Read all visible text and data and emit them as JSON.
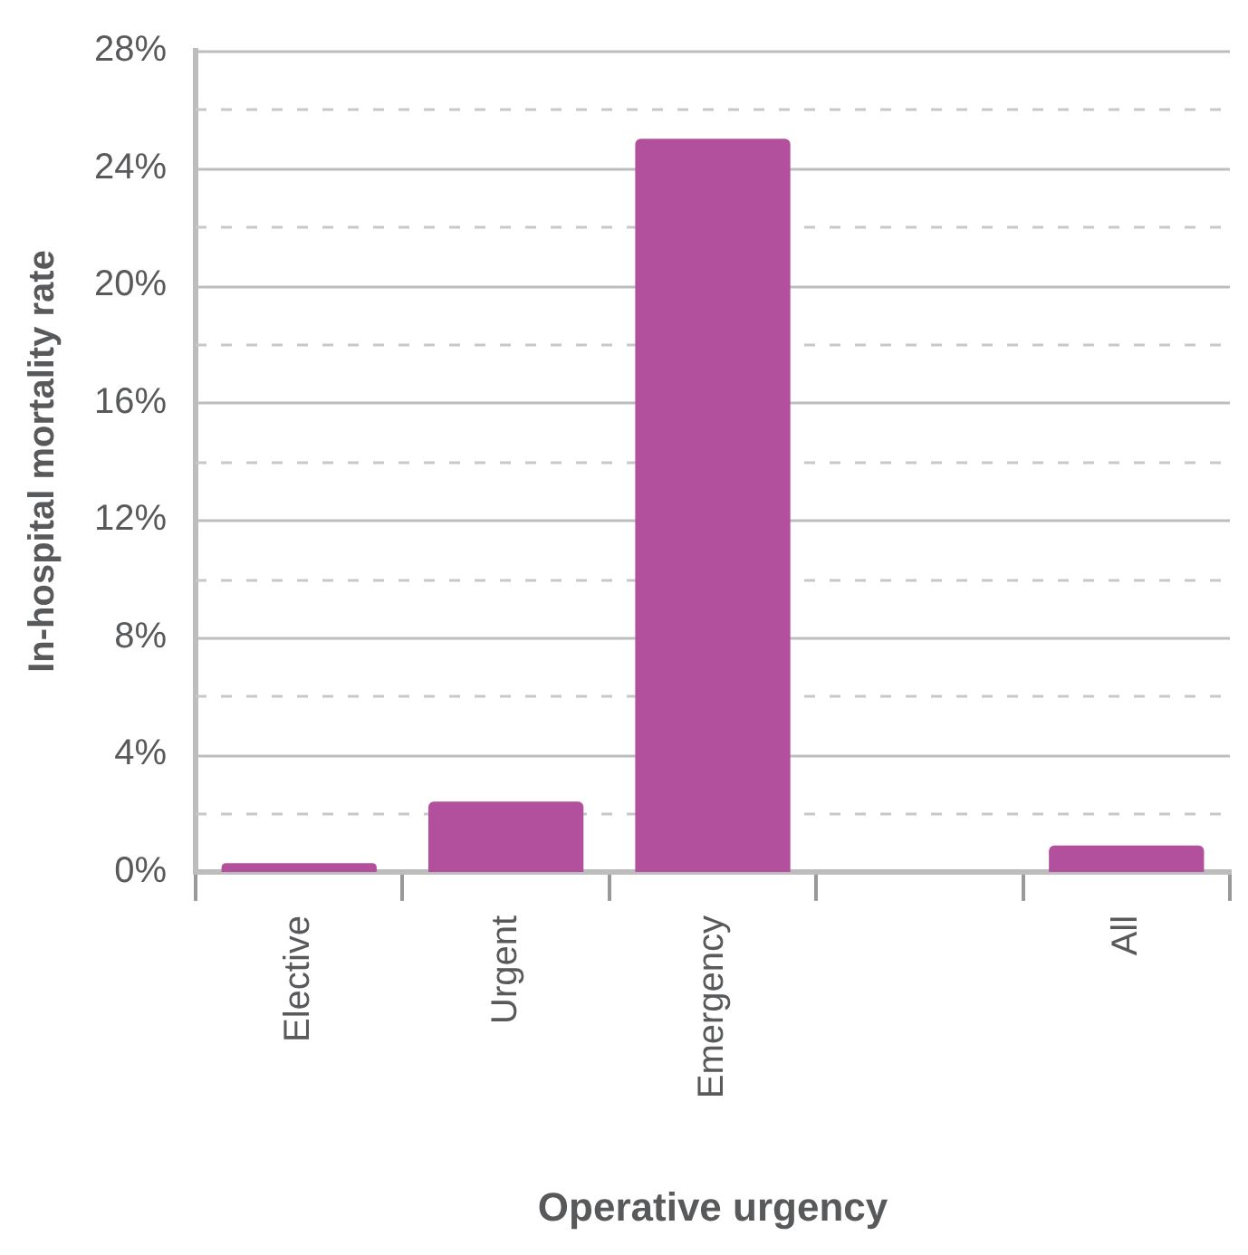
{
  "chart_data": {
    "type": "bar",
    "xlabel": "Operative urgency",
    "ylabel": "In-hospital mortality rate",
    "categories": [
      "Elective",
      "Urgent",
      "Emergency",
      null,
      "All"
    ],
    "values": [
      0.3,
      2.4,
      25.0,
      null,
      0.9
    ],
    "color": "#b2509e",
    "ylim": [
      0,
      28
    ],
    "yticks": [
      {
        "value": 0,
        "label": "0%"
      },
      {
        "value": 2,
        "label": null
      },
      {
        "value": 4,
        "label": "4%"
      },
      {
        "value": 6,
        "label": null
      },
      {
        "value": 8,
        "label": "8%"
      },
      {
        "value": 10,
        "label": null
      },
      {
        "value": 12,
        "label": "12%"
      },
      {
        "value": 14,
        "label": null
      },
      {
        "value": 16,
        "label": "16%"
      },
      {
        "value": 18,
        "label": null
      },
      {
        "value": 20,
        "label": "20%"
      },
      {
        "value": 22,
        "label": null
      },
      {
        "value": 24,
        "label": "24%"
      },
      {
        "value": 26,
        "label": null
      },
      {
        "value": 28,
        "label": "28%"
      }
    ],
    "grid": "y",
    "legend": false
  }
}
